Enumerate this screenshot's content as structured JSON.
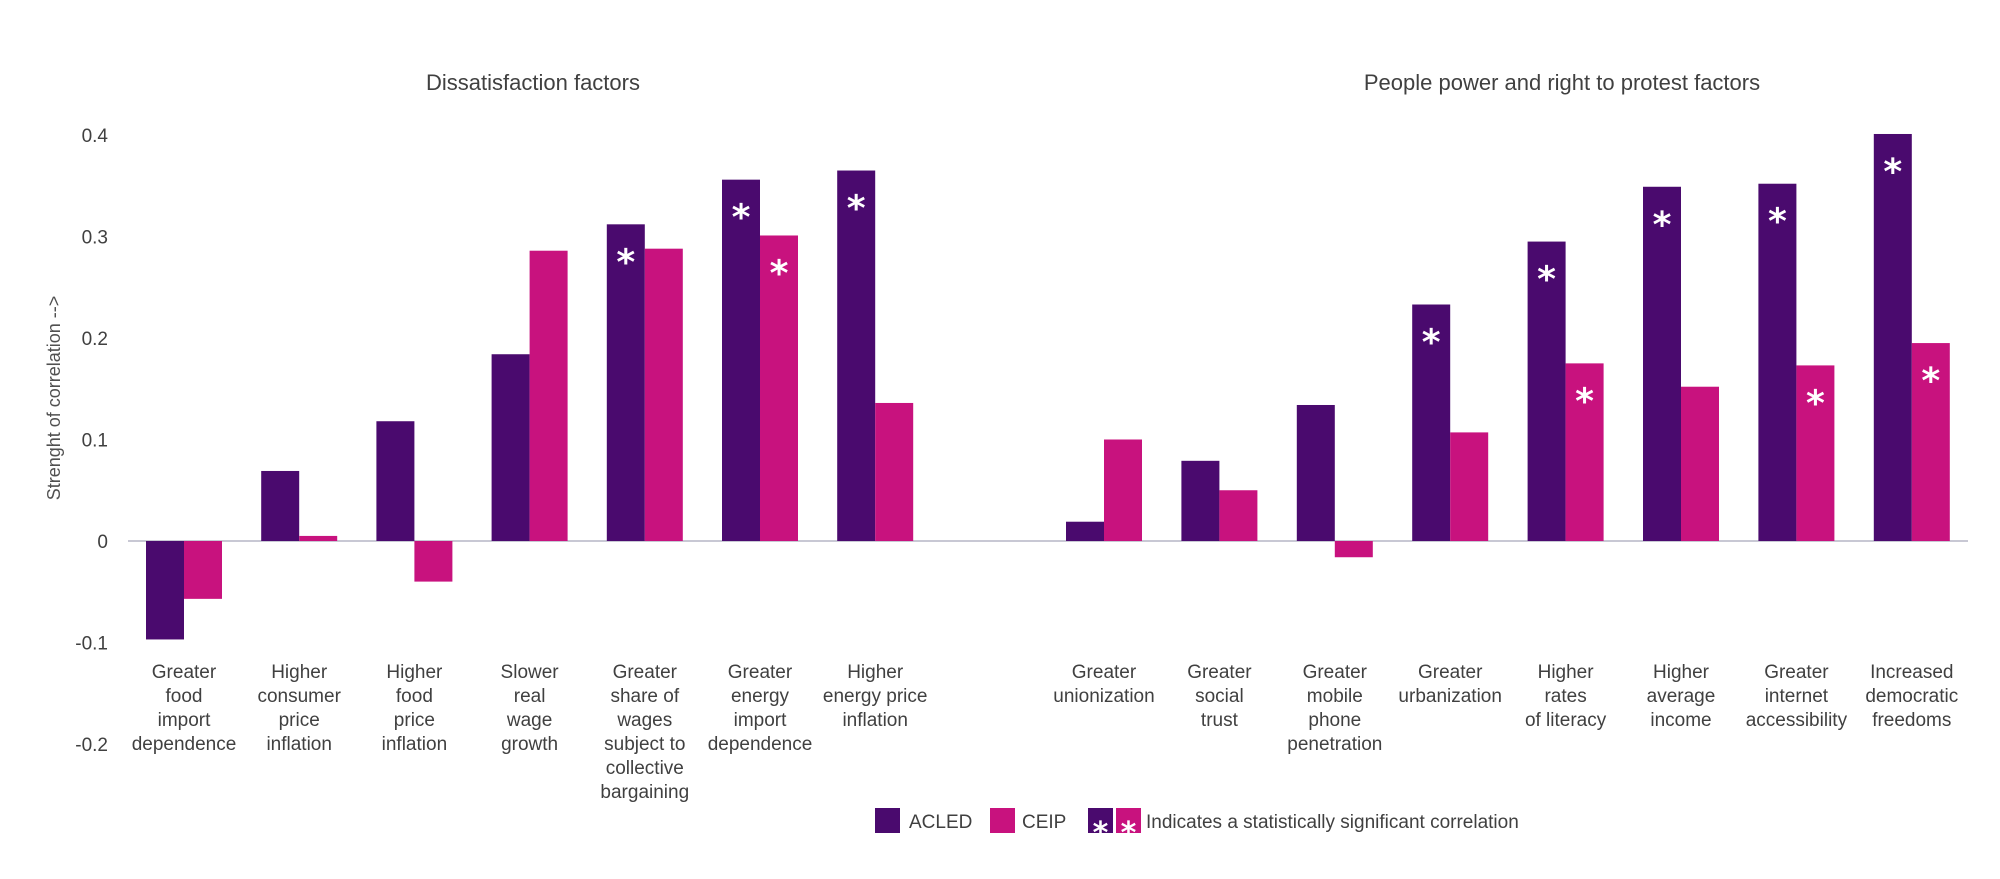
{
  "colors": {
    "acled": "#4a0a6e",
    "ceip": "#c8127e",
    "axis": "#c8c8d4"
  },
  "chart_data": [
    {
      "type": "bar",
      "title": "Dissatisfaction factors",
      "ylabel": "Strenght of correlation -->",
      "ylim": [
        -0.2,
        0.4
      ],
      "yticks": [
        "0.4",
        "0.3",
        "0.2",
        "0.1",
        "0",
        "-0.1",
        "-0.2"
      ],
      "categories": [
        [
          "Greater",
          "food",
          "import",
          "dependence"
        ],
        [
          "Higher",
          "consumer",
          "price",
          "inflation"
        ],
        [
          "Higher",
          "food",
          "price",
          "inflation"
        ],
        [
          "Slower",
          "real",
          "wage",
          "growth"
        ],
        [
          "Greater",
          "share of",
          "wages",
          "subject to",
          "collective",
          "bargaining"
        ],
        [
          "Greater",
          "energy",
          "import",
          "dependence"
        ],
        [
          "Higher",
          "energy price",
          "inflation"
        ]
      ],
      "series": [
        {
          "name": "ACLED",
          "values": [
            -0.097,
            0.069,
            0.118,
            0.184,
            0.312,
            0.356,
            0.365
          ],
          "significant": [
            false,
            false,
            false,
            false,
            true,
            true,
            true
          ]
        },
        {
          "name": "CEIP",
          "values": [
            -0.057,
            0.005,
            -0.04,
            0.286,
            0.288,
            0.301,
            0.136
          ],
          "significant": [
            false,
            false,
            false,
            false,
            false,
            true,
            false
          ]
        }
      ]
    },
    {
      "type": "bar",
      "title": "People power and right to protest factors",
      "ylim": [
        -0.2,
        0.4
      ],
      "categories": [
        [
          "Greater",
          "unionization"
        ],
        [
          "Greater",
          "social",
          "trust"
        ],
        [
          "Greater",
          "mobile",
          "phone",
          "penetration"
        ],
        [
          "Greater",
          "urbanization"
        ],
        [
          "Higher",
          "rates",
          "of literacy"
        ],
        [
          "Higher",
          "average",
          "income"
        ],
        [
          "Greater",
          "internet",
          "accessibility"
        ],
        [
          "Increased",
          "democratic",
          "freedoms"
        ]
      ],
      "series": [
        {
          "name": "ACLED",
          "values": [
            0.019,
            0.079,
            0.134,
            0.233,
            0.295,
            0.349,
            0.352,
            0.401
          ],
          "significant": [
            false,
            false,
            false,
            true,
            true,
            true,
            true,
            true
          ]
        },
        {
          "name": "CEIP",
          "values": [
            0.1,
            0.05,
            -0.016,
            0.107,
            0.175,
            0.152,
            0.173,
            0.195
          ],
          "significant": [
            false,
            false,
            false,
            false,
            true,
            false,
            true,
            true
          ]
        }
      ]
    }
  ],
  "legend": {
    "items": [
      "ACLED",
      "CEIP"
    ],
    "significance_symbol": "*",
    "significance_text": "Indicates a statistically significant correlation"
  }
}
